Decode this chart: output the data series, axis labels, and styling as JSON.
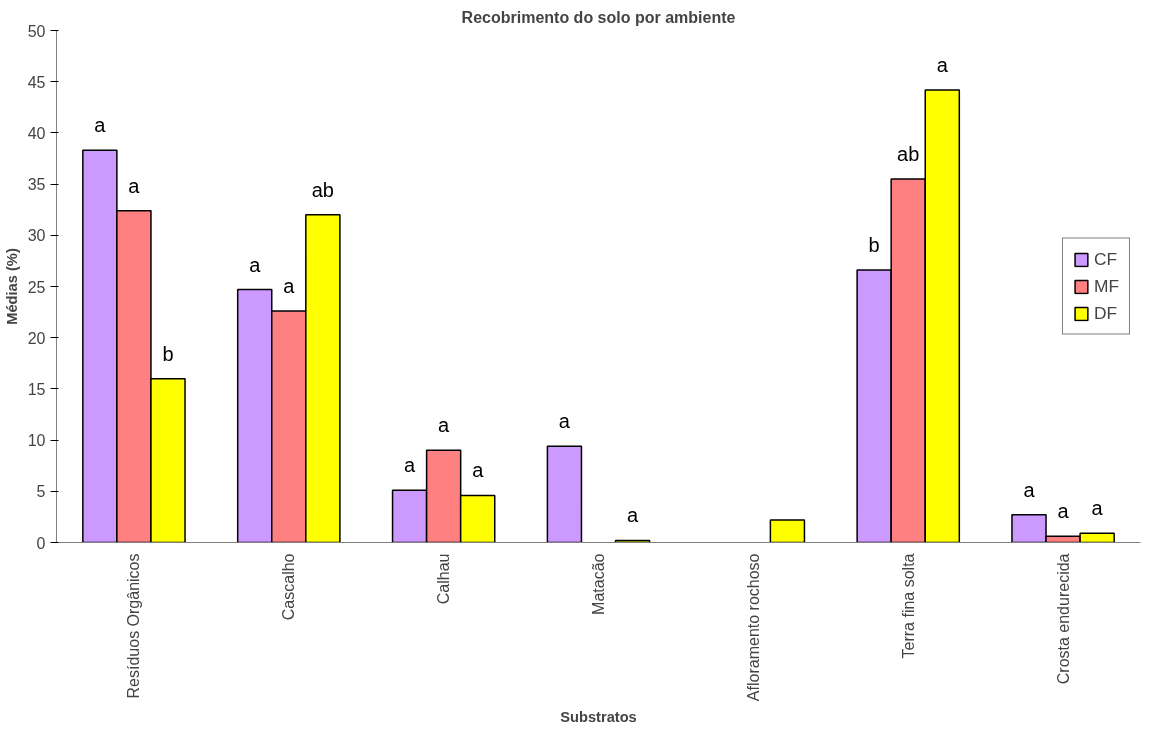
{
  "chart_data": {
    "type": "bar",
    "title": "Recobrimento do solo por ambiente",
    "xlabel": "Substratos",
    "ylabel": "Médias (%)",
    "categories": [
      "Resíduos Orgânicos",
      "Cascalho",
      "Calhau",
      "Matacão",
      "Afloramento rochoso",
      "Terra fina solta",
      "Crosta endurecida"
    ],
    "series": [
      {
        "name": "CF",
        "color": "#cc99ff",
        "values": [
          38.3,
          24.7,
          5.1,
          9.4,
          null,
          26.6,
          2.7
        ],
        "value_labels": [
          "a",
          "a",
          "a",
          "a",
          null,
          "b",
          "a"
        ]
      },
      {
        "name": "MF",
        "color": "#ff8080",
        "values": [
          32.4,
          22.6,
          9.0,
          null,
          null,
          35.5,
          0.6
        ],
        "value_labels": [
          "a",
          "a",
          "a",
          null,
          null,
          "ab",
          "a"
        ]
      },
      {
        "name": "DF",
        "color": "#ffff00",
        "values": [
          16.0,
          32.0,
          4.6,
          0.2,
          2.2,
          44.2,
          0.9
        ],
        "value_labels": [
          "b",
          "ab",
          "a",
          "a",
          null,
          "a",
          "a"
        ]
      }
    ],
    "ylim": [
      0,
      50
    ],
    "yticks": [
      0,
      5,
      10,
      15,
      20,
      25,
      30,
      35,
      40,
      45,
      50
    ],
    "grid": false,
    "legend": "right"
  }
}
